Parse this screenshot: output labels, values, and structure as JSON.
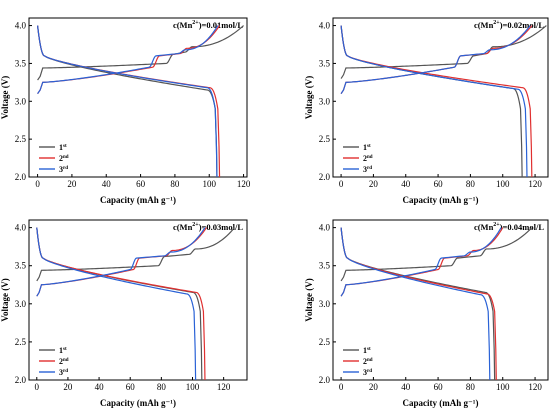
{
  "figure": {
    "xlabel": "Capacity (mAh g⁻¹)",
    "ylabel": "Voltage (V)",
    "series_names": [
      "1st",
      "2nd",
      "3rd"
    ],
    "colors": {
      "1st": "#555555",
      "2nd": "#e03030",
      "3rd": "#2a62d6"
    }
  },
  "chart_data": [
    {
      "type": "line",
      "title": "",
      "condition_label": {
        "prefix": "c(Mn",
        "sup": "2+",
        "suffix": ")=0.01mol/L"
      },
      "xlabel": "Capacity (mAh g⁻¹)",
      "ylabel": "Voltage (V)",
      "xlim": [
        -5,
        122
      ],
      "ylim": [
        2.0,
        4.1
      ],
      "xticks": [
        0,
        20,
        40,
        60,
        80,
        100,
        120
      ],
      "yticks": [
        2.0,
        2.5,
        3.0,
        3.5,
        4.0
      ],
      "legend": "bottom-left",
      "series": [
        {
          "name": "1st",
          "charge": {
            "end": 120,
            "plateau": [
              3.44,
              3.5
            ],
            "steps": [
              [
                75,
                3.62
              ],
              [
                88,
                3.72
              ]
            ],
            "start": 3.28
          },
          "discharge": {
            "end": 104.5,
            "mid": [
              3.5,
              3.15
            ],
            "top": 4.0
          }
        },
        {
          "name": "2nd",
          "charge": {
            "end": 106,
            "plateau": [
              3.25,
              3.45
            ],
            "steps": [
              [
                67,
                3.6
              ],
              [
                85,
                3.7
              ]
            ],
            "start": 3.1
          },
          "discharge": {
            "end": 106,
            "mid": [
              3.5,
              3.18
            ],
            "top": 4.0
          }
        },
        {
          "name": "3rd",
          "charge": {
            "end": 105,
            "plateau": [
              3.25,
              3.45
            ],
            "steps": [
              [
                65,
                3.6
              ],
              [
                84,
                3.68
              ]
            ],
            "start": 3.1
          },
          "discharge": {
            "end": 104.5,
            "mid": [
              3.5,
              3.18
            ],
            "top": 4.0
          }
        }
      ]
    },
    {
      "type": "line",
      "title": "",
      "condition_label": {
        "prefix": "c(Mn",
        "sup": "2+",
        "suffix": ")=0.02mol/L"
      },
      "xlabel": "Capacity (mAh g⁻¹)",
      "ylabel": "Voltage (V)",
      "xlim": [
        -5,
        128
      ],
      "ylim": [
        2.0,
        4.1
      ],
      "xticks": [
        0,
        20,
        40,
        60,
        80,
        100,
        120
      ],
      "yticks": [
        2.0,
        2.5,
        3.0,
        3.5,
        4.0
      ],
      "legend": "bottom-left",
      "series": [
        {
          "name": "1st",
          "charge": {
            "end": 127,
            "plateau": [
              3.44,
              3.5
            ],
            "steps": [
              [
                78,
                3.6
              ],
              [
                92,
                3.72
              ]
            ],
            "start": 3.3
          },
          "discharge": {
            "end": 112,
            "mid": [
              3.5,
              3.17
            ],
            "top": 4.0
          }
        },
        {
          "name": "2nd",
          "charge": {
            "end": 118,
            "plateau": [
              3.25,
              3.45
            ],
            "steps": [
              [
                70,
                3.6
              ],
              [
                92,
                3.7
              ]
            ],
            "start": 3.1
          },
          "discharge": {
            "end": 118,
            "mid": [
              3.5,
              3.18
            ],
            "top": 4.0
          }
        },
        {
          "name": "3rd",
          "charge": {
            "end": 117,
            "plateau": [
              3.25,
              3.45
            ],
            "steps": [
              [
                70,
                3.6
              ],
              [
                90,
                3.68
              ]
            ],
            "start": 3.1
          },
          "discharge": {
            "end": 115,
            "mid": [
              3.5,
              3.16
            ],
            "top": 4.0
          }
        }
      ]
    },
    {
      "type": "line",
      "title": "",
      "condition_label": {
        "prefix": "c(Mn",
        "sup": "2+",
        "suffix": ")=0.03mol/L"
      },
      "xlabel": "Capacity (mAh g⁻¹)",
      "ylabel": "Voltage (V)",
      "xlim": [
        -5,
        135
      ],
      "ylim": [
        2.0,
        4.1
      ],
      "xticks": [
        0,
        20,
        40,
        60,
        80,
        100,
        120
      ],
      "yticks": [
        2.0,
        2.5,
        3.0,
        3.5,
        4.0
      ],
      "legend": "bottom-left",
      "series": [
        {
          "name": "1st",
          "charge": {
            "end": 127,
            "plateau": [
              3.44,
              3.5
            ],
            "steps": [
              [
                78,
                3.62
              ],
              [
                100,
                3.72
              ]
            ],
            "start": 3.3
          },
          "discharge": {
            "end": 106,
            "mid": [
              3.5,
              3.15
            ],
            "top": 4.0
          }
        },
        {
          "name": "2nd",
          "charge": {
            "end": 109,
            "plateau": [
              3.25,
              3.45
            ],
            "steps": [
              [
                62,
                3.6
              ],
              [
                85,
                3.7
              ]
            ],
            "start": 3.1
          },
          "discharge": {
            "end": 108,
            "mid": [
              3.5,
              3.15
            ],
            "top": 4.0
          }
        },
        {
          "name": "3rd",
          "charge": {
            "end": 108,
            "plateau": [
              3.25,
              3.45
            ],
            "steps": [
              [
                60,
                3.6
              ],
              [
                84,
                3.68
              ]
            ],
            "start": 3.1
          },
          "discharge": {
            "end": 102,
            "mid": [
              3.5,
              3.13
            ],
            "top": 4.0
          }
        }
      ]
    },
    {
      "type": "line",
      "title": "",
      "condition_label": {
        "prefix": "c(Mn",
        "sup": "2+",
        "suffix": ")=0.04mol/L"
      },
      "xlabel": "Capacity (mAh g⁻¹)",
      "ylabel": "Voltage (V)",
      "xlim": [
        -5,
        128
      ],
      "ylim": [
        2.0,
        4.1
      ],
      "xticks": [
        0,
        20,
        40,
        60,
        80,
        100,
        120
      ],
      "yticks": [
        2.0,
        2.5,
        3.0,
        3.5,
        4.0
      ],
      "legend": "bottom-left",
      "series": [
        {
          "name": "1st",
          "charge": {
            "end": 118,
            "plateau": [
              3.44,
              3.5
            ],
            "steps": [
              [
                68,
                3.6
              ],
              [
                88,
                3.72
              ]
            ],
            "start": 3.3
          },
          "discharge": {
            "end": 95,
            "mid": [
              3.5,
              3.15
            ],
            "top": 4.0
          }
        },
        {
          "name": "2nd",
          "charge": {
            "end": 100,
            "plateau": [
              3.25,
              3.45
            ],
            "steps": [
              [
                60,
                3.6
              ],
              [
                80,
                3.7
              ]
            ],
            "start": 3.1
          },
          "discharge": {
            "end": 96,
            "mid": [
              3.5,
              3.13
            ],
            "top": 4.0
          }
        },
        {
          "name": "3rd",
          "charge": {
            "end": 99,
            "plateau": [
              3.25,
              3.45
            ],
            "steps": [
              [
                58,
                3.6
              ],
              [
                78,
                3.68
              ]
            ],
            "start": 3.1
          },
          "discharge": {
            "end": 92,
            "mid": [
              3.5,
              3.12
            ],
            "top": 4.0
          }
        }
      ]
    }
  ]
}
